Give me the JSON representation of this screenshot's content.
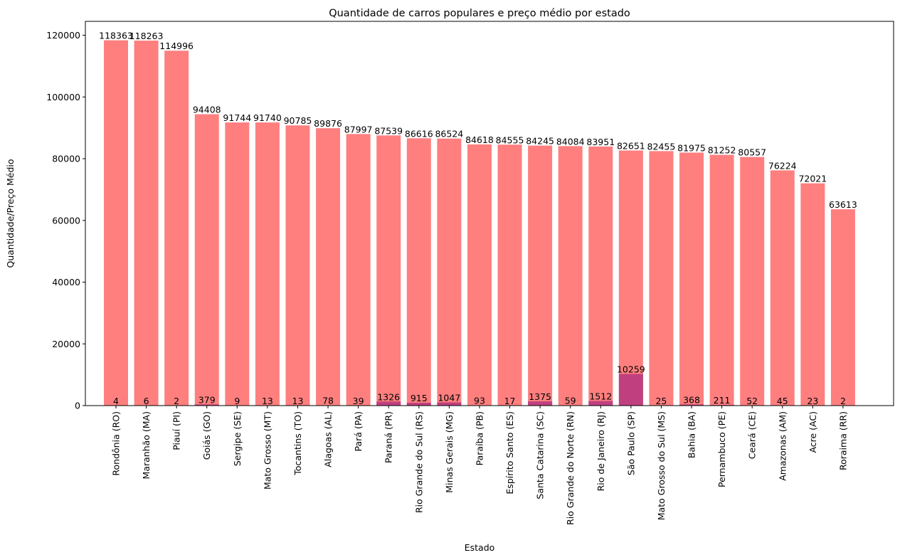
{
  "chart_data": {
    "type": "bar",
    "title": "Quantidade de carros populares e preço médio por estado",
    "xlabel": "Estado",
    "ylabel": "Quantidade/Preço Médio",
    "ylim": [
      0,
      124500
    ],
    "yticks": [
      0,
      20000,
      40000,
      60000,
      80000,
      100000,
      120000
    ],
    "grid": false,
    "categories": [
      "Rondônia (RO)",
      "Maranhão (MA)",
      "Piauí (PI)",
      "Goiás (GO)",
      "Sergipe (SE)",
      "Mato Grosso (MT)",
      "Tocantins (TO)",
      "Alagoas (AL)",
      "Pará (PA)",
      "Paraná (PR)",
      "Rio Grande do Sul (RS)",
      "Minas Gerais (MG)",
      "Paraíba (PB)",
      "Espírito Santo (ES)",
      "Santa Catarina (SC)",
      "Rio Grande do Norte (RN)",
      "Rio de Janeiro (RJ)",
      "São Paulo (SP)",
      "Mato Grosso do Sul (MS)",
      "Bahia (BA)",
      "Pernambuco (PE)",
      "Ceará (CE)",
      "Amazonas (AM)",
      "Acre (AC)",
      "Roraima (RR)"
    ],
    "series": [
      {
        "color": "#ff7f7f",
        "values": [
          118363,
          118263,
          114996,
          94408,
          91744,
          91740,
          90785,
          89876,
          87997,
          87539,
          86616,
          86524,
          84618,
          84555,
          84245,
          84084,
          83951,
          82651,
          82455,
          81975,
          81252,
          80557,
          76224,
          72021,
          63613
        ],
        "labels": [
          "118363",
          "118263",
          "114996",
          "94408",
          "91744",
          "91740",
          "90785",
          "89876",
          "87997",
          "87539",
          "86616",
          "86524",
          "84618",
          "84555",
          "84245",
          "84084",
          "83951",
          "82651",
          "82455",
          "81975",
          "81252",
          "80557",
          "76224",
          "72021",
          "63613"
        ]
      },
      {
        "color": "#c0407f",
        "values": [
          4,
          6,
          2,
          379,
          9,
          13,
          13,
          78,
          39,
          1326,
          915,
          1047,
          93,
          17,
          1375,
          59,
          1512,
          10259,
          25,
          368,
          211,
          52,
          45,
          23,
          2
        ],
        "labels": [
          "4",
          "6",
          "2",
          "379",
          "9",
          "13",
          "13",
          "78",
          "39",
          "1326",
          "915",
          "1047",
          "93",
          "17",
          "1375",
          "59",
          "1512",
          "10259",
          "25",
          "368",
          "211",
          "52",
          "45",
          "23",
          "2"
        ]
      }
    ]
  }
}
